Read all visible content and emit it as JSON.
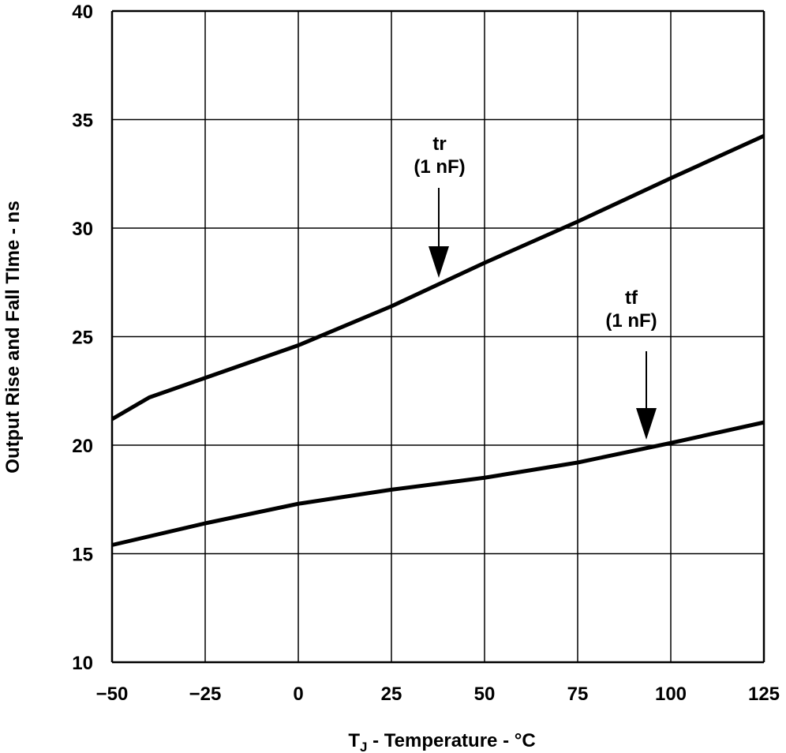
{
  "chart_data": {
    "type": "line",
    "title": "",
    "xlabel": "T_J - Temperature - °C",
    "xlabel_main": "T",
    "xlabel_sub": "J",
    "xlabel_rest": " - Temperature - °C",
    "ylabel": "Output Rise and Fall TIme - ns",
    "xlim": [
      -50,
      125
    ],
    "ylim": [
      10,
      40
    ],
    "xticks": [
      -50,
      -25,
      0,
      25,
      50,
      75,
      100,
      125
    ],
    "xtick_labels": [
      "−50",
      "−25",
      "0",
      "25",
      "50",
      "75",
      "100",
      "125"
    ],
    "yticks": [
      10,
      15,
      20,
      25,
      30,
      35,
      40
    ],
    "ytick_labels": [
      "10",
      "15",
      "20",
      "25",
      "30",
      "35",
      "40"
    ],
    "grid": true,
    "series": [
      {
        "name": "tr",
        "annotation": [
          "tr",
          "(1 nF)"
        ],
        "x": [
          -50,
          -40,
          -25,
          0,
          25,
          50,
          75,
          100,
          125
        ],
        "y": [
          21.2,
          22.2,
          23.1,
          24.6,
          26.4,
          28.4,
          30.3,
          32.3,
          34.25
        ]
      },
      {
        "name": "tf",
        "annotation": [
          "tf",
          "(1 nF)"
        ],
        "x": [
          -50,
          -25,
          0,
          25,
          50,
          75,
          100,
          125
        ],
        "y": [
          15.4,
          16.4,
          17.3,
          17.95,
          18.5,
          19.2,
          20.1,
          21.05
        ]
      }
    ],
    "line_color": "#000000"
  }
}
